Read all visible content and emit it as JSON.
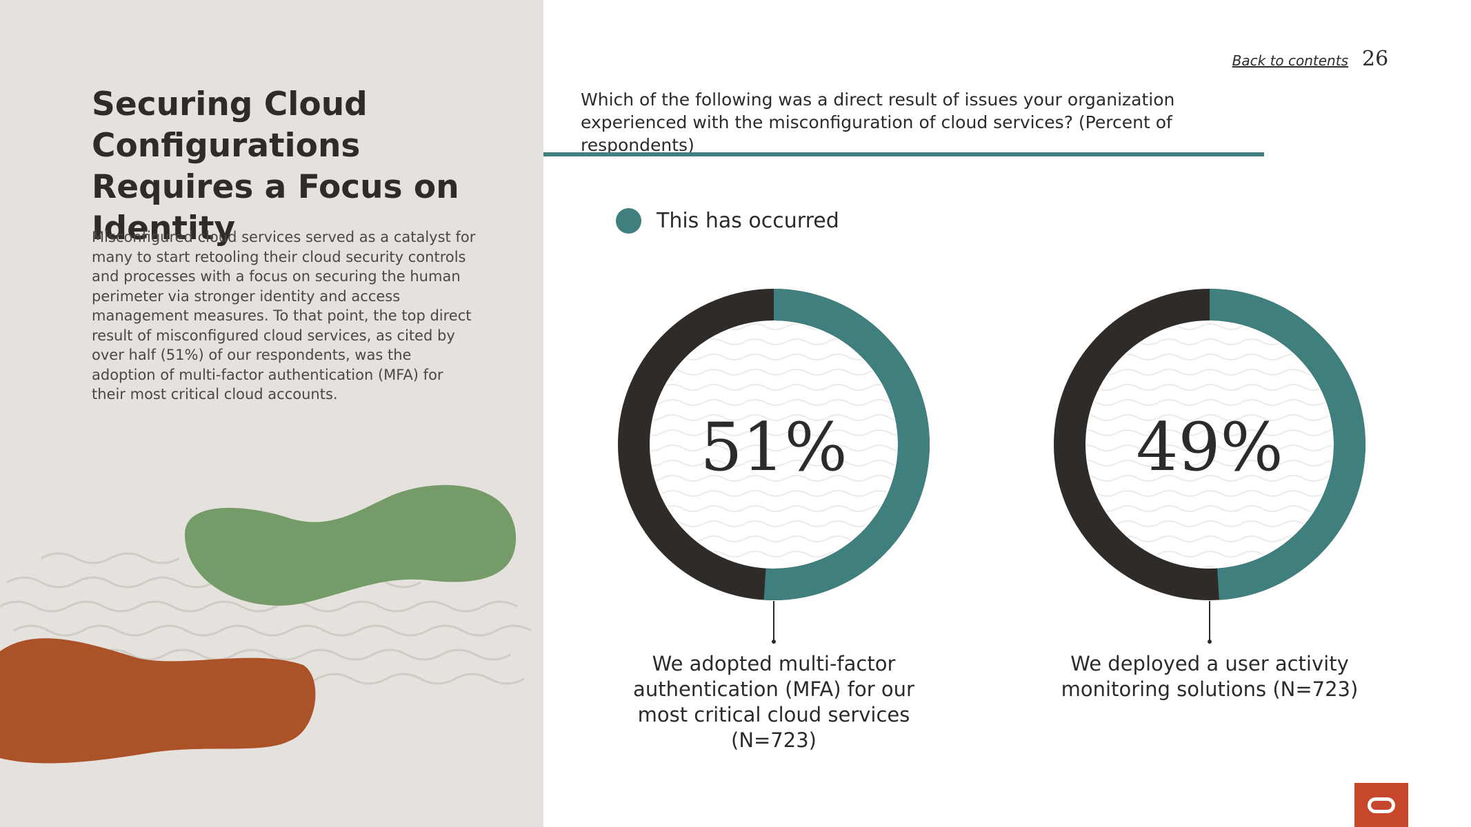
{
  "page": {
    "title": "Securing Cloud Configurations Requires a Focus on Identity",
    "intro": "Misconfigured cloud services served as a catalyst for many to start retooling their cloud security controls and processes with a focus on securing the human perimeter via stronger identity and access management measures. To that point, the top direct result of misconfigured cloud services, as cited by over half (51%) of our respondents, was the adoption of multi-factor authentication (MFA) for their most critical cloud accounts.",
    "back_link": "Back to contents",
    "page_number": "26"
  },
  "colors": {
    "occurred": "#3f7f7d",
    "remainder": "#2e2b28",
    "green_blob": "#759b68",
    "orange_blob": "#ac5229",
    "logo_bg": "#c7472c"
  },
  "icons": {
    "logo": "oracle-logo-icon",
    "legend": "legend-dot-icon"
  },
  "chart_data": {
    "type": "pie",
    "title": "Which of the following was a direct result of issues your organization experienced with the misconfiguration of cloud services? (Percent of respondents)",
    "legend": [
      "This has occurred"
    ],
    "legend_position": "top-left",
    "series": [
      {
        "name": "This has occurred",
        "label": "51%",
        "value": 51,
        "category": "We adopted multi-factor authentication (MFA) for our most critical cloud services (N=723)"
      },
      {
        "name": "This has occurred",
        "label": "49%",
        "value": 49,
        "category": "We deployed a user activity monitoring solutions (N=723)"
      }
    ]
  }
}
